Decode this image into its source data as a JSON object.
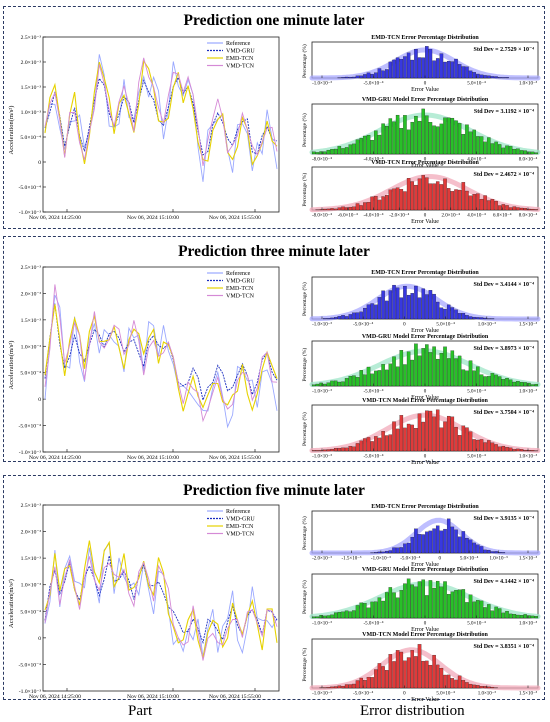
{
  "footer": {
    "left": "Part",
    "right": "Error distribution"
  },
  "colors": {
    "reference": "#9aa8ff",
    "vmd_gru": "#1a2dbf",
    "emd_tcn": "#e6d200",
    "vmd_tcn": "#d58ad6",
    "hist_blue": "#3838e0",
    "hist_green": "#28c028",
    "hist_red": "#e03a3a",
    "kde_blue": "#a8a8ff",
    "kde_green": "#9fe6c8",
    "kde_red": "#f2aab9"
  },
  "chart_data": [
    {
      "type": "line",
      "title": "Prediction one minute later",
      "ylabel": "Acceleration(m/s²)",
      "xtick_labels": [
        "Nov 06, 2024 14:25:00",
        "Nov 06, 2024 15:10:00",
        "Nov 06, 2024 15:55:00"
      ],
      "ytick_labels": [
        "-1.0×10⁻³",
        "-5.0×10⁻⁴",
        "0",
        "5.0×10⁻⁴",
        "1.0×10⁻³",
        "1.5×10⁻³",
        "2.0×10⁻³",
        "2.5×10⁻³"
      ],
      "ylim": [
        -0.001,
        0.0025
      ],
      "legend": [
        "Reference",
        "VMD-GRU",
        "EMD-TCN",
        "VMD-TCN"
      ],
      "legend_position": "top-right",
      "series_shape": [
        0.0006,
        0.0011,
        0.0015,
        0.0009,
        0.0003,
        0.0008,
        0.0012,
        0.0006,
        0.0002,
        0.0007,
        0.0013,
        0.0019,
        0.0016,
        0.0011,
        0.0007,
        0.001,
        0.0015,
        0.0012,
        0.0008,
        0.0014,
        0.002,
        0.0017,
        0.0013,
        0.001,
        0.0008,
        0.0011,
        0.0016,
        0.0018,
        0.0014,
        0.0016,
        0.0012,
        0.0005,
        -0.0001,
        0.0002,
        0.0008,
        0.0011,
        0.0009,
        0.0004,
        0.0001,
        0.0005,
        0.0009,
        0.0007,
        0.0002,
        0.0,
        0.0004,
        0.0007,
        0.0005,
        0.0001
      ]
    },
    {
      "type": "line",
      "title": "Prediction three minute later",
      "ylabel": "Acceleration(m/s²)",
      "xtick_labels": [
        "Nov 06, 2024 14:25:00",
        "Nov 06, 2024 15:10:00",
        "Nov 06, 2024 15:55:00"
      ],
      "ytick_labels": [
        "-1.0×10⁻³",
        "-5.0×10⁻⁴",
        "0",
        "5.0×10⁻⁴",
        "1.0×10⁻³",
        "1.5×10⁻³",
        "2.0×10⁻³",
        "2.5×10⁻³"
      ],
      "ylim": [
        -0.001,
        0.0025
      ],
      "legend": [
        "Reference",
        "VMD-GRU",
        "EMD-TCN",
        "VMD-TCN"
      ],
      "legend_position": "top-right",
      "series_shape": [
        0.0004,
        0.0012,
        0.002,
        0.0013,
        0.0005,
        0.0009,
        0.0014,
        0.001,
        0.0006,
        0.0011,
        0.0016,
        0.0013,
        0.0009,
        0.0012,
        0.0015,
        0.0011,
        0.0008,
        0.0012,
        0.0014,
        0.001,
        0.0007,
        0.0011,
        0.0013,
        0.0009,
        0.0011,
        0.0012,
        0.0008,
        0.0003,
        -0.0001,
        0.0001,
        0.0004,
        0.0002,
        -0.0002,
        0.0,
        0.0003,
        0.0005,
        0.0002,
        -0.0001,
        0.0001,
        0.0004,
        0.0006,
        0.0003,
        0.0,
        0.0002,
        0.0006,
        0.0008,
        0.0004,
        0.0002
      ]
    },
    {
      "type": "line",
      "title": "Prediction five minute later",
      "ylabel": "Acceleration(m/s²)",
      "xtick_labels": [
        "Nov 06, 2024 14:25:00",
        "Nov 06, 2024 15:10:00",
        "Nov 06, 2024 15:55:00"
      ],
      "ytick_labels": [
        "-1.0×10⁻³",
        "-5.0×10⁻⁴",
        "0",
        "5.0×10⁻⁴",
        "1.0×10⁻³",
        "1.5×10⁻³",
        "2.0×10⁻³",
        "2.5×10⁻³"
      ],
      "ylim": [
        -0.001,
        0.0025
      ],
      "legend": [
        "Reference",
        "VMD-GRU",
        "EMD-TCN",
        "VMD-TCN"
      ],
      "legend_position": "top-right",
      "series_shape": [
        0.0003,
        0.0009,
        0.0014,
        0.0008,
        0.0012,
        0.0016,
        0.0011,
        0.0007,
        0.0013,
        0.0017,
        0.0012,
        0.0009,
        0.0014,
        0.0016,
        0.0011,
        0.0013,
        0.0015,
        0.001,
        0.0008,
        0.0012,
        0.0015,
        0.0011,
        0.0009,
        0.0013,
        0.001,
        0.0007,
        0.0003,
        0.0,
        -0.0002,
        0.0001,
        0.0004,
        0.0001,
        -0.0003,
        0.0,
        0.0003,
        0.0001,
        -0.0002,
        0.0001,
        0.0005,
        0.0002,
        -0.0001,
        0.0003,
        0.0006,
        0.0002,
        0.0,
        0.0004,
        0.0003,
        0.0001
      ]
    },
    {
      "type": "bar",
      "title": "EMD-TCN Error Percentage Distribution",
      "ylabel": "Percentage (%)",
      "xlabel": "Error Value",
      "std_text": "Std Dev = 2.7529 × 10⁻⁴",
      "xtick_labels": [
        "-1.0×10⁻³",
        "-5.0×10⁻⁴",
        "0",
        "5.0×10⁻⁴",
        "1.0×10⁻³"
      ],
      "center": 0.5,
      "spread": 0.13,
      "color_key": "blue"
    },
    {
      "type": "bar",
      "title": "VMD-GRU Model Error Percentage Distribution",
      "ylabel": "Percentage (%)",
      "xlabel": "Error Value",
      "std_text": "Std Dev = 3.1192 × 10⁻⁴",
      "xtick_labels": [
        "-8.0×10⁻⁴",
        "-4.0×10⁻⁴",
        "0",
        "4.0×10⁻⁴",
        "8.0×10⁻⁴"
      ],
      "center": 0.5,
      "spread": 0.2,
      "color_key": "green"
    },
    {
      "type": "bar",
      "title": "VMD-TCN Error Percentage Distribution",
      "ylabel": "Percentage (%)",
      "xlabel": "Error Value",
      "std_text": "Std Dev = 2.4672 × 10⁻⁴",
      "xtick_labels": [
        "-8.0×10⁻⁴",
        "-6.0×10⁻⁴",
        "-4.0×10⁻⁴",
        "-2.0×10⁻⁴",
        "0",
        "2.0×10⁻⁴",
        "4.0×10⁻⁴",
        "6.0×10⁻⁴",
        "8.0×10⁻⁴"
      ],
      "center": 0.52,
      "spread": 0.17,
      "color_key": "red"
    },
    {
      "type": "bar",
      "title": "EMD-TCN Error Percentage Distribution",
      "ylabel": "Percentage (%)",
      "xlabel": "Error Value",
      "std_text": "Std Dev = 3.4144 × 10⁻⁴",
      "xtick_labels": [
        "-1.0×10⁻³",
        "-5.0×10⁻⁴",
        "0",
        "5.0×10⁻⁴",
        "1.0×10⁻³",
        "1.5×10⁻³"
      ],
      "center": 0.42,
      "spread": 0.13,
      "color_key": "blue"
    },
    {
      "type": "bar",
      "title": "VMD-GRU Model Error Percentage Distribution",
      "ylabel": "Percentage (%)",
      "xlabel": "Error Value",
      "std_text": "Std Dev = 3.8973 × 10⁻⁴",
      "xtick_labels": [
        "-1.0×10⁻³",
        "-5.0×10⁻⁴",
        "0",
        "5.0×10⁻⁴",
        "1.0×10⁻³"
      ],
      "center": 0.5,
      "spread": 0.2,
      "color_key": "green"
    },
    {
      "type": "bar",
      "title": "VMD-TCN Model Error Percentage Distribution",
      "ylabel": "Percentage (%)",
      "xlabel": "Error Value",
      "std_text": "Std Dev = 3.7504 × 10⁻⁴",
      "xtick_labels": [
        "-1.0×10⁻³",
        "-5.0×10⁻⁴",
        "0",
        "5.0×10⁻⁴",
        "1.0×10⁻³"
      ],
      "center": 0.5,
      "spread": 0.17,
      "color_key": "red"
    },
    {
      "type": "bar",
      "title": "EMD-TCN Error Percentage Distribution",
      "ylabel": "Percentage (%)",
      "xlabel": "Error Value",
      "std_text": "Std Dev = 3.9135 × 10⁻⁴",
      "xtick_labels": [
        "-2.0×10⁻³",
        "-1.5×10⁻³",
        "-1.0×10⁻³",
        "-5.0×10⁻⁴",
        "0",
        "5.0×10⁻⁴",
        "1.0×10⁻³",
        "1.5×10⁻³"
      ],
      "center": 0.56,
      "spread": 0.1,
      "color_key": "blue"
    },
    {
      "type": "bar",
      "title": "VMD-GRU Model Error Percentage Distribution",
      "ylabel": "Percentage (%)",
      "xlabel": "Error Value",
      "std_text": "Std Dev = 4.1442 × 10⁻⁴",
      "xtick_labels": [
        "-1.0×10⁻³",
        "-5.0×10⁻⁴",
        "0",
        "5.0×10⁻⁴",
        "1.0×10⁻³"
      ],
      "center": 0.5,
      "spread": 0.2,
      "color_key": "green"
    },
    {
      "type": "bar",
      "title": "VMD-TCN Model Error Percentage Distribution",
      "ylabel": "Percentage (%)",
      "xlabel": "Error Value",
      "std_text": "Std Dev = 3.8351 × 10⁻⁴",
      "xtick_labels": [
        "-1.0×10⁻³",
        "-5.0×10⁻⁴",
        "0",
        "5.0×10⁻⁴",
        "1.0×10⁻³",
        "1.5×10⁻³"
      ],
      "center": 0.44,
      "spread": 0.13,
      "color_key": "red"
    }
  ]
}
